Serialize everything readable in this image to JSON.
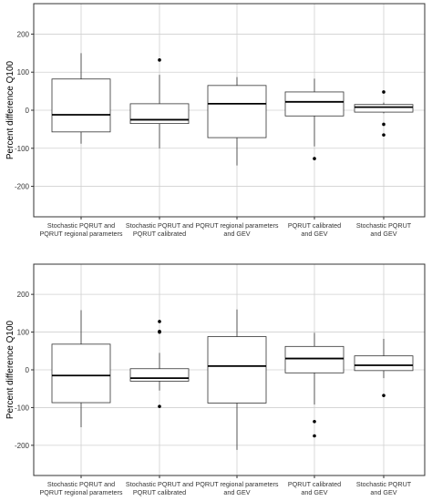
{
  "chart_data": [
    {
      "type": "box",
      "ylabel": "Percent difference Q100",
      "ylim": [
        -280,
        280
      ],
      "yticks": [
        -200,
        -100,
        0,
        100,
        200
      ],
      "grid": true,
      "legend": "none",
      "categories": [
        [
          "Stochastic PQRUT and",
          "PQRUT regional parameters"
        ],
        [
          "Stochastic PQRUT and",
          "PQRUT calibrated"
        ],
        [
          "PQRUT regional parameters",
          "and GEV"
        ],
        [
          "PQRUT calibrated",
          "and GEV"
        ],
        [
          "Stochastic PQRUT",
          "and GEV"
        ]
      ],
      "boxes": [
        {
          "whisker_low": -88,
          "q1": -57,
          "median": -12,
          "q3": 82,
          "whisker_high": 150,
          "outliers": []
        },
        {
          "whisker_low": -100,
          "q1": -35,
          "median": -25,
          "q3": 17,
          "whisker_high": 93,
          "outliers": [
            132
          ]
        },
        {
          "whisker_low": -145,
          "q1": -72,
          "median": 17,
          "q3": 65,
          "whisker_high": 87,
          "outliers": []
        },
        {
          "whisker_low": -95,
          "q1": -15,
          "median": 22,
          "q3": 48,
          "whisker_high": 83,
          "outliers": [
            -127
          ]
        },
        {
          "whisker_low": -8,
          "q1": -5,
          "median": 8,
          "q3": 15,
          "whisker_high": 20,
          "outliers": [
            48,
            -37,
            -65
          ]
        }
      ]
    },
    {
      "type": "box",
      "ylabel": "Percent difference Q100",
      "ylim": [
        -280,
        280
      ],
      "yticks": [
        -200,
        -100,
        0,
        100,
        200
      ],
      "grid": true,
      "legend": "none",
      "categories": [
        [
          "Stochastic PQRUT and",
          "PQRUT regional parameters"
        ],
        [
          "Stochastic PQRUT and",
          "PQRUT calibrated"
        ],
        [
          "PQRUT regional parameters",
          "and GEV"
        ],
        [
          "PQRUT calibrated",
          "and GEV"
        ],
        [
          "Stochastic PQRUT",
          "and GEV"
        ]
      ],
      "boxes": [
        {
          "whisker_low": -152,
          "q1": -87,
          "median": -15,
          "q3": 68,
          "whisker_high": 158,
          "outliers": []
        },
        {
          "whisker_low": -55,
          "q1": -30,
          "median": -22,
          "q3": 3,
          "whisker_high": 45,
          "outliers": [
            128,
            102,
            100,
            -97
          ]
        },
        {
          "whisker_low": -212,
          "q1": -88,
          "median": 10,
          "q3": 88,
          "whisker_high": 160,
          "outliers": []
        },
        {
          "whisker_low": -92,
          "q1": -8,
          "median": 30,
          "q3": 62,
          "whisker_high": 98,
          "outliers": [
            -137,
            -175
          ]
        },
        {
          "whisker_low": -22,
          "q1": -2,
          "median": 12,
          "q3": 37,
          "whisker_high": 82,
          "outliers": [
            -68
          ]
        }
      ]
    }
  ]
}
